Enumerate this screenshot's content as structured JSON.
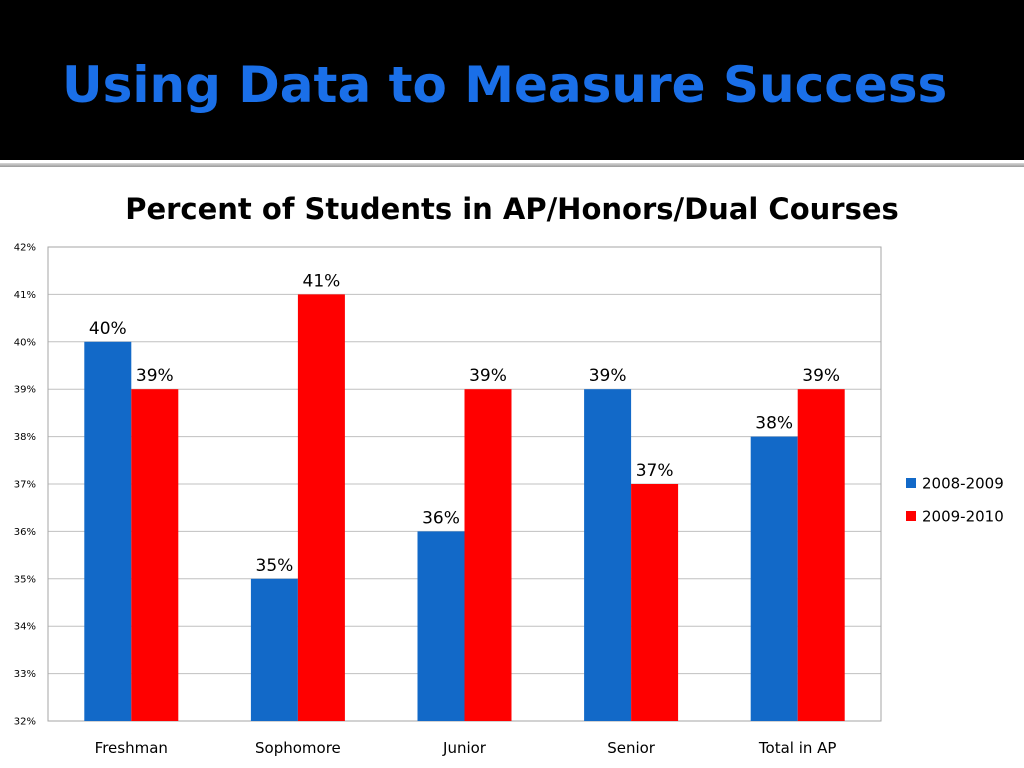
{
  "slide": {
    "title": "Using Data to Measure Success"
  },
  "colors": {
    "header_bg": "#000000",
    "title": "#1a6fe8",
    "series_2008": "#1269c8",
    "series_2009": "#ff0000",
    "grid": "#c0c0c0"
  },
  "chart_data": {
    "type": "bar",
    "title": "Percent of Students in AP/Honors/Dual Courses",
    "xlabel": "",
    "ylabel": "",
    "categories": [
      "Freshman",
      "Sophomore",
      "Junior",
      "Senior",
      "Total in AP"
    ],
    "series": [
      {
        "name": "2008-2009",
        "color": "#1269c8",
        "values": [
          40,
          35,
          36,
          39,
          38
        ]
      },
      {
        "name": "2009-2010",
        "color": "#ff0000",
        "values": [
          39,
          41,
          39,
          37,
          39
        ]
      }
    ],
    "ylim": [
      32,
      42
    ],
    "y_ticks": [
      32,
      33,
      34,
      35,
      36,
      37,
      38,
      39,
      40,
      41,
      42
    ],
    "y_tick_suffix": "%",
    "data_label_suffix": "%",
    "grid": true,
    "legend_position": "right"
  }
}
